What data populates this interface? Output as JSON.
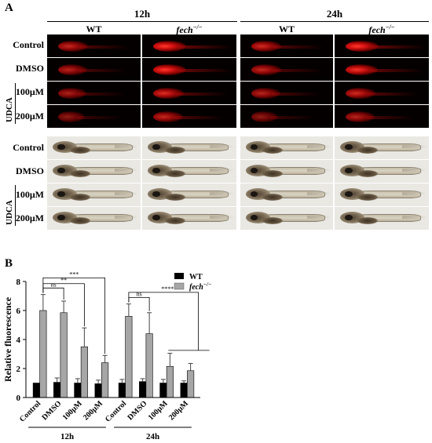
{
  "figure": {
    "panel_a_label": "A",
    "panel_b_label": "B",
    "time_12h": "12h",
    "time_24h": "24h",
    "wt": "WT",
    "fech_base": "fech",
    "fech_sup": "−/−",
    "rows": [
      "Control",
      "DMSO",
      "100μM",
      "200μM"
    ],
    "udca": "UDCA"
  },
  "chart_data": {
    "type": "bar",
    "ylabel": "Relative fluorescence",
    "ylim": [
      0,
      8
    ],
    "yticks": [
      0,
      2,
      4,
      6,
      8
    ],
    "categories": [
      "Control",
      "DMSO",
      "100μM",
      "200μM",
      "Control",
      "DMSO",
      "100μM",
      "200μM"
    ],
    "groups": [
      {
        "label": "12h"
      },
      {
        "label": "24h"
      }
    ],
    "series": [
      {
        "name": "WT",
        "color": "#000000",
        "values": [
          1.0,
          1.05,
          1.0,
          0.95,
          1.0,
          1.1,
          1.0,
          1.0
        ],
        "errors": [
          0.0,
          0.3,
          0.3,
          0.25,
          0.25,
          0.2,
          0.25,
          0.15
        ]
      },
      {
        "name": "fech−/−",
        "color": "#a6a6a6",
        "values": [
          6.0,
          5.85,
          3.5,
          2.4,
          5.6,
          4.4,
          2.15,
          1.85
        ],
        "errors": [
          1.1,
          0.8,
          1.3,
          0.5,
          0.85,
          1.45,
          0.9,
          0.5
        ]
      }
    ],
    "legend": [
      {
        "label": "WT",
        "color": "#000000"
      },
      {
        "label_base": "fech",
        "label_sup": "−/−",
        "color": "#a6a6a6"
      }
    ],
    "legend_position": "top-right",
    "significance": [
      "ns",
      "**",
      "***",
      "ns",
      "****"
    ]
  }
}
